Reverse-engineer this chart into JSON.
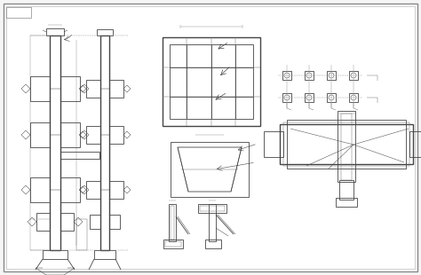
{
  "bg_color": "#f5f5f5",
  "line_color": "#444444",
  "thin_color": "#777777",
  "dim_color": "#999999",
  "lw_thick": 1.0,
  "lw_main": 0.6,
  "lw_thin": 0.35,
  "fig_w": 4.74,
  "fig_h": 3.1
}
